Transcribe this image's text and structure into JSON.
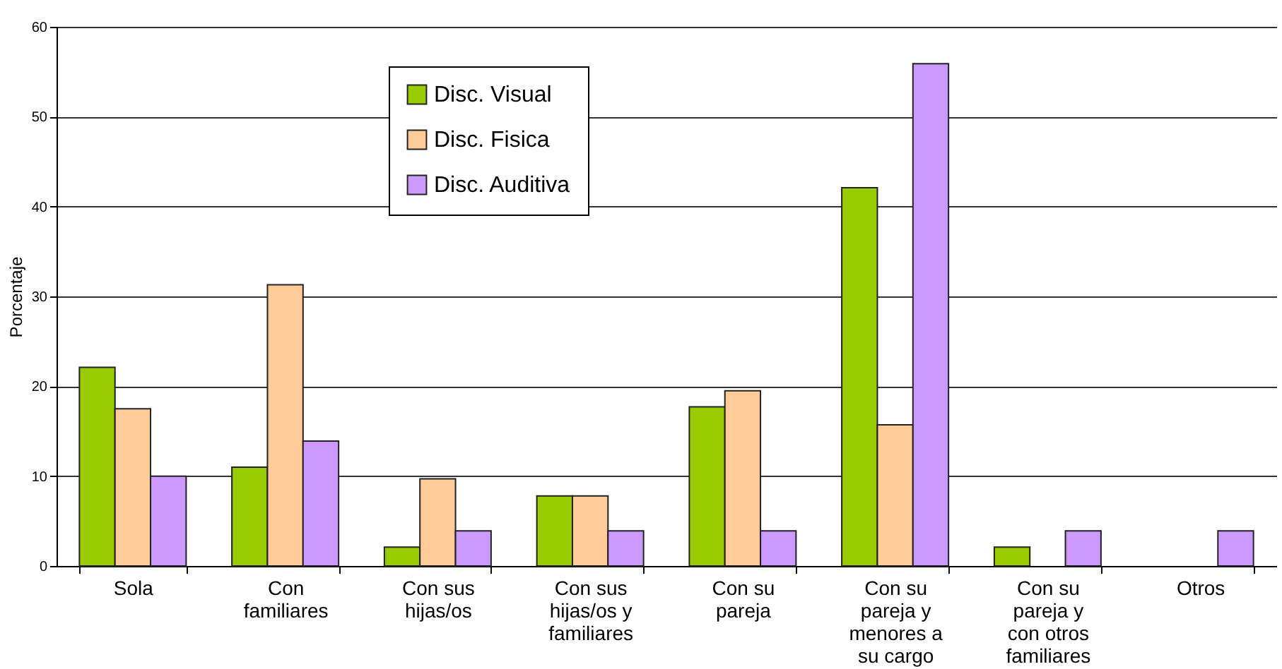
{
  "chart_data": {
    "type": "bar",
    "ylabel": "Porcentaje",
    "categories": [
      "Sola",
      "Con familiares",
      "Con sus hijas/os",
      "Con sus hijas/os y familiares",
      "Con su pareja",
      "Con su pareja y menores a su cargo",
      "Con su pareja y con otros familiares",
      "Otros"
    ],
    "series": [
      {
        "name": "Disc. Visual",
        "color": "#99cc00",
        "values": [
          22.1,
          11.0,
          2.1,
          7.8,
          17.7,
          42.1,
          2.1,
          null
        ]
      },
      {
        "name": "Disc. Fisica",
        "color": "#ffcc99",
        "values": [
          17.5,
          31.3,
          9.7,
          7.8,
          19.5,
          15.7,
          null,
          null
        ]
      },
      {
        "name": "Disc. Auditiva",
        "color": "#cc99ff",
        "values": [
          10,
          13.9,
          3.9,
          3.9,
          3.9,
          55.9,
          3.9,
          3.9
        ]
      }
    ],
    "ylim": [
      0,
      60
    ],
    "yticks": [
      0,
      10,
      20,
      30,
      40,
      50,
      60
    ],
    "grid": "y",
    "legend": "top"
  }
}
